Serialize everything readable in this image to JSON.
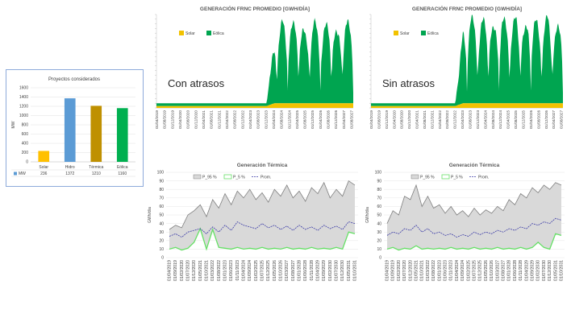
{
  "chart_data": [
    {
      "id": "proyectos",
      "type": "bar",
      "title": "Proyectos considerados",
      "ylabel": "MW",
      "ylim": [
        0,
        1600
      ],
      "yticks": [
        "0",
        "200",
        "400",
        "600",
        "800",
        "1000",
        "1200",
        "1400",
        "1600"
      ],
      "categories": [
        "Solar",
        "Hidro",
        "Térmica",
        "Eólica"
      ],
      "values": [
        236,
        1372,
        1210,
        1160
      ],
      "value_labels": [
        "236",
        "1372",
        "1210",
        "1160"
      ],
      "colors": [
        "#ffc000",
        "#5b9bd5",
        "#bf9000",
        "#00b050"
      ],
      "legend_label": "MW"
    },
    {
      "id": "frnc-con",
      "type": "area",
      "title": "GENERACIÓN FRNC PROMEDIO [GWH/DÍA]",
      "annotation": "Con atrasos",
      "x": [
        "01/04/2019",
        "01/08/2019",
        "01/12/2019",
        "01/04/2020",
        "01/08/2020",
        "01/12/2020",
        "01/04/2021",
        "01/08/2021",
        "01/12/2021",
        "01/04/2022",
        "01/08/2022",
        "01/12/2022",
        "01/04/2023",
        "01/08/2023",
        "01/12/2023",
        "01/04/2024",
        "01/08/2024",
        "01/12/2024",
        "01/04/2025",
        "01/08/2025",
        "01/12/2025",
        "01/04/2026",
        "01/08/2026",
        "01/12/2026",
        "01/04/2027",
        "01/08/2027"
      ],
      "series": [
        {
          "name": "Solar",
          "color": "#f2c200",
          "values": [
            0.2,
            0.2,
            0.2,
            0.2,
            0.2,
            0.2,
            0.2,
            0.2,
            0.2,
            0.2,
            0.2,
            0.2,
            0.2,
            0.2,
            0.2,
            0.5,
            0.5,
            0.5,
            0.5,
            0.5,
            0.5,
            0.5,
            0.5,
            0.5,
            0.5,
            0.5
          ]
        },
        {
          "name": "Eólica",
          "color": "#00a550",
          "values": [
            0.3,
            0.3,
            0.3,
            0.3,
            0.3,
            0.3,
            0.3,
            0.3,
            0.3,
            0.3,
            0.3,
            0.3,
            0.3,
            0.3,
            0.3,
            7.0,
            9.0,
            8.5,
            9.0,
            7.5,
            9.0,
            8.0,
            9.0,
            7.5,
            9.0,
            8.5
          ]
        }
      ]
    },
    {
      "id": "frnc-sin",
      "type": "area",
      "title": "GENERACIÓN FRNC PROMEDIO [GWH/DÍA]",
      "annotation": "Sin atrasos",
      "x": [
        "01/04/2019",
        "01/08/2019",
        "01/12/2019",
        "01/04/2020",
        "01/08/2020",
        "01/12/2020",
        "01/04/2021",
        "01/08/2021",
        "01/12/2021",
        "01/04/2022",
        "01/08/2022",
        "01/12/2022",
        "01/04/2023",
        "01/08/2023",
        "01/12/2023",
        "01/04/2024",
        "01/08/2024",
        "01/12/2024",
        "01/04/2025",
        "01/08/2025",
        "01/12/2025",
        "01/04/2026",
        "01/08/2026",
        "01/12/2026",
        "01/04/2027",
        "01/08/2027"
      ],
      "series": [
        {
          "name": "Solar",
          "color": "#f2c200",
          "values": [
            0.2,
            0.2,
            0.2,
            0.2,
            0.2,
            0.2,
            0.2,
            0.2,
            0.2,
            0.2,
            0.2,
            0.2,
            0.5,
            0.5,
            0.5,
            0.5,
            0.5,
            0.5,
            0.5,
            0.5,
            0.5,
            0.5,
            0.5,
            0.5,
            0.5,
            0.5
          ]
        },
        {
          "name": "Eólica",
          "color": "#00a550",
          "values": [
            0.3,
            0.3,
            0.3,
            0.3,
            0.3,
            0.3,
            0.3,
            0.3,
            0.3,
            0.3,
            0.3,
            0.3,
            8.0,
            9.5,
            8.5,
            9.5,
            8.0,
            9.5,
            8.5,
            9.5,
            8.0,
            9.5,
            8.5,
            9.5,
            8.0,
            9.0
          ]
        }
      ]
    },
    {
      "id": "termica-con",
      "type": "line",
      "title": "Generación Térmica",
      "ylabel": "GWh/día",
      "ylim": [
        0,
        100
      ],
      "yticks": [
        "0",
        "10",
        "20",
        "30",
        "40",
        "50",
        "60",
        "70",
        "80",
        "90",
        "100"
      ],
      "x": [
        "01/04/2019",
        "01/09/2019",
        "01/02/2020",
        "01/07/2020",
        "01/12/2020",
        "01/05/2021",
        "01/10/2021",
        "01/03/2022",
        "01/08/2022",
        "01/01/2023",
        "01/06/2023",
        "01/11/2023",
        "01/04/2024",
        "01/09/2024",
        "01/02/2025",
        "01/07/2025",
        "01/12/2025",
        "01/05/2026",
        "01/10/2026",
        "01/03/2027",
        "01/08/2027",
        "01/01/2028",
        "01/06/2028",
        "01/11/2028",
        "01/04/2029",
        "01/09/2029",
        "01/02/2030",
        "01/07/2030",
        "01/12/2030",
        "01/05/2031",
        "01/10/2031"
      ],
      "series": [
        {
          "name": "P_95 %",
          "color": "#7f7f7f",
          "values": [
            33,
            38,
            35,
            50,
            55,
            62,
            48,
            68,
            58,
            75,
            62,
            78,
            70,
            80,
            68,
            76,
            65,
            80,
            72,
            85,
            70,
            78,
            66,
            82,
            75,
            88,
            70,
            80,
            72,
            90,
            85
          ]
        },
        {
          "name": "P_5 %",
          "color": "#66e066",
          "values": [
            10,
            12,
            9,
            11,
            18,
            34,
            10,
            33,
            12,
            11,
            10,
            12,
            10,
            11,
            10,
            12,
            10,
            11,
            10,
            12,
            10,
            11,
            10,
            12,
            10,
            11,
            10,
            12,
            10,
            30,
            28
          ]
        },
        {
          "name": "Prom.",
          "color": "#3d3da8",
          "values": [
            25,
            28,
            24,
            30,
            32,
            34,
            28,
            36,
            30,
            38,
            32,
            42,
            38,
            36,
            34,
            40,
            35,
            38,
            33,
            37,
            32,
            38,
            33,
            36,
            32,
            38,
            34,
            37,
            33,
            42,
            40
          ]
        }
      ]
    },
    {
      "id": "termica-sin",
      "type": "line",
      "title": "Generación Térmica",
      "ylabel": "GWh/día",
      "ylim": [
        0,
        100
      ],
      "yticks": [
        "0",
        "10",
        "20",
        "30",
        "40",
        "50",
        "60",
        "70",
        "80",
        "90",
        "100"
      ],
      "x": [
        "01/04/2019",
        "01/09/2019",
        "01/02/2020",
        "01/07/2020",
        "01/12/2020",
        "01/05/2021",
        "01/10/2021",
        "01/03/2022",
        "01/08/2022",
        "01/01/2023",
        "01/06/2023",
        "01/11/2023",
        "01/04/2024",
        "01/09/2024",
        "01/02/2025",
        "01/07/2025",
        "01/12/2025",
        "01/05/2026",
        "01/10/2026",
        "01/03/2027",
        "01/08/2027",
        "01/01/2028",
        "01/06/2028",
        "01/11/2028",
        "01/04/2029",
        "01/09/2029",
        "01/02/2030",
        "01/07/2030",
        "01/12/2030",
        "01/05/2031",
        "01/10/2031"
      ],
      "series": [
        {
          "name": "P_95 %",
          "color": "#7f7f7f",
          "values": [
            40,
            55,
            50,
            72,
            68,
            85,
            60,
            72,
            58,
            62,
            52,
            60,
            50,
            55,
            48,
            58,
            50,
            56,
            52,
            60,
            55,
            68,
            62,
            75,
            70,
            82,
            76,
            85,
            80,
            88,
            85
          ]
        },
        {
          "name": "P_5 %",
          "color": "#66e066",
          "values": [
            10,
            12,
            9,
            11,
            10,
            14,
            10,
            11,
            10,
            11,
            10,
            12,
            10,
            11,
            10,
            12,
            10,
            11,
            10,
            12,
            10,
            11,
            10,
            12,
            10,
            12,
            18,
            12,
            10,
            28,
            26
          ]
        },
        {
          "name": "Prom.",
          "color": "#3d3da8",
          "values": [
            26,
            30,
            28,
            34,
            32,
            38,
            30,
            34,
            28,
            30,
            26,
            28,
            24,
            27,
            25,
            30,
            27,
            30,
            28,
            32,
            30,
            34,
            32,
            36,
            34,
            40,
            38,
            42,
            40,
            46,
            44
          ]
        }
      ]
    }
  ]
}
